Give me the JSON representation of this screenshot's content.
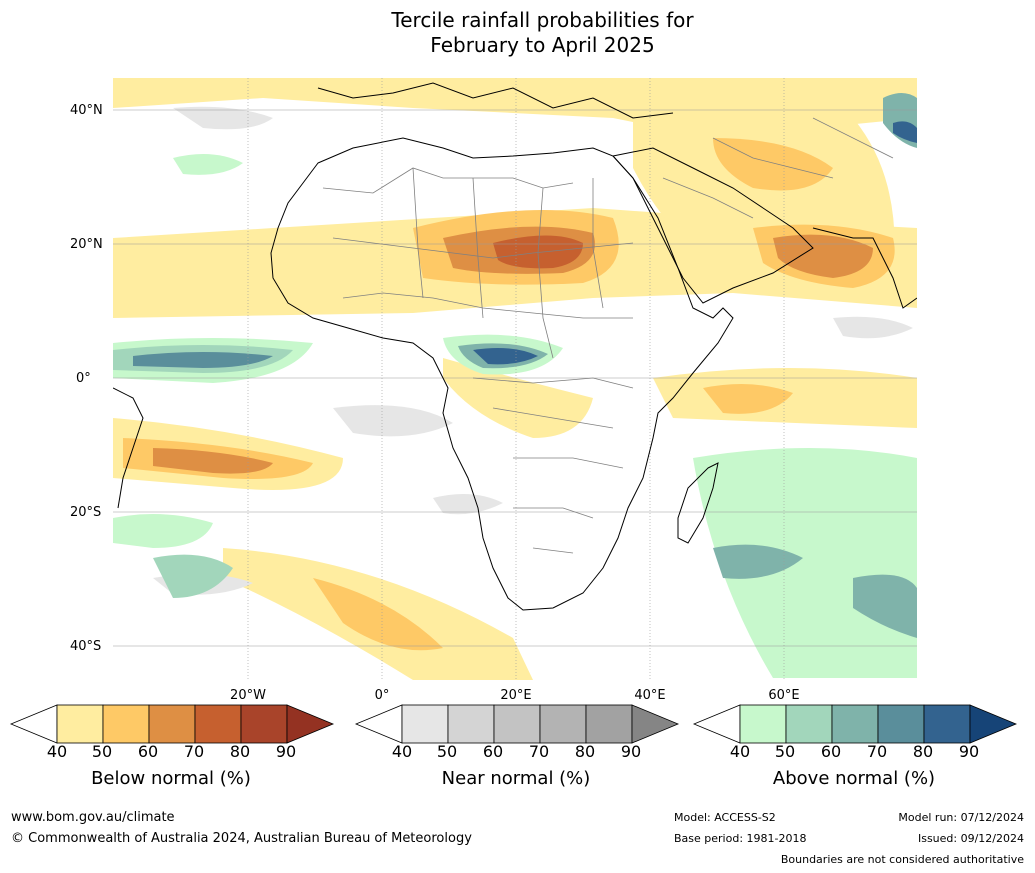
{
  "title": {
    "line1": "Tercile rainfall probabilities for",
    "line2": "February to April 2025"
  },
  "map": {
    "region": "Africa",
    "lat_labels": [
      "40°N",
      "20°N",
      "0°",
      "20°S",
      "40°S"
    ],
    "lon_labels": [
      "20°W",
      "0°",
      "20°E",
      "40°E",
      "60°E"
    ],
    "colors": {
      "ocean": "#ffffff",
      "coastline": "#000000",
      "borders": "#808080",
      "gridlines": "#9a9a9a"
    }
  },
  "colorbars": [
    {
      "name": "below",
      "title": "Below normal (%)",
      "ticks": [
        "40",
        "50",
        "60",
        "70",
        "80",
        "90"
      ],
      "colors": [
        "#ffffff",
        "#ffeda0",
        "#fec966",
        "#de8f44",
        "#c6602f",
        "#a9442a",
        "#943222"
      ]
    },
    {
      "name": "near",
      "title": "Near normal (%)",
      "ticks": [
        "40",
        "50",
        "60",
        "70",
        "80",
        "90"
      ],
      "colors": [
        "#ffffff",
        "#e6e6e6",
        "#d4d4d4",
        "#c3c3c3",
        "#b3b3b3",
        "#a2a2a2",
        "#858585"
      ]
    },
    {
      "name": "above",
      "title": "Above normal (%)",
      "ticks": [
        "40",
        "50",
        "60",
        "70",
        "80",
        "90"
      ],
      "colors": [
        "#ffffff",
        "#c7f8cc",
        "#a2d6bb",
        "#7fb3aa",
        "#5a8e9b",
        "#33638f",
        "#164477"
      ]
    }
  ],
  "footer": {
    "website": "www.bom.gov.au/climate",
    "copyright": "© Commonwealth of Australia 2024, Australian Bureau of Meteorology",
    "model": "Model: ACCESS-S2",
    "base_period": "Base period: 1981-2018",
    "model_run": "Model run: 07/12/2024",
    "issued": "Issued: 09/12/2024",
    "disclaimer": "Boundaries are not considered authoritative"
  }
}
